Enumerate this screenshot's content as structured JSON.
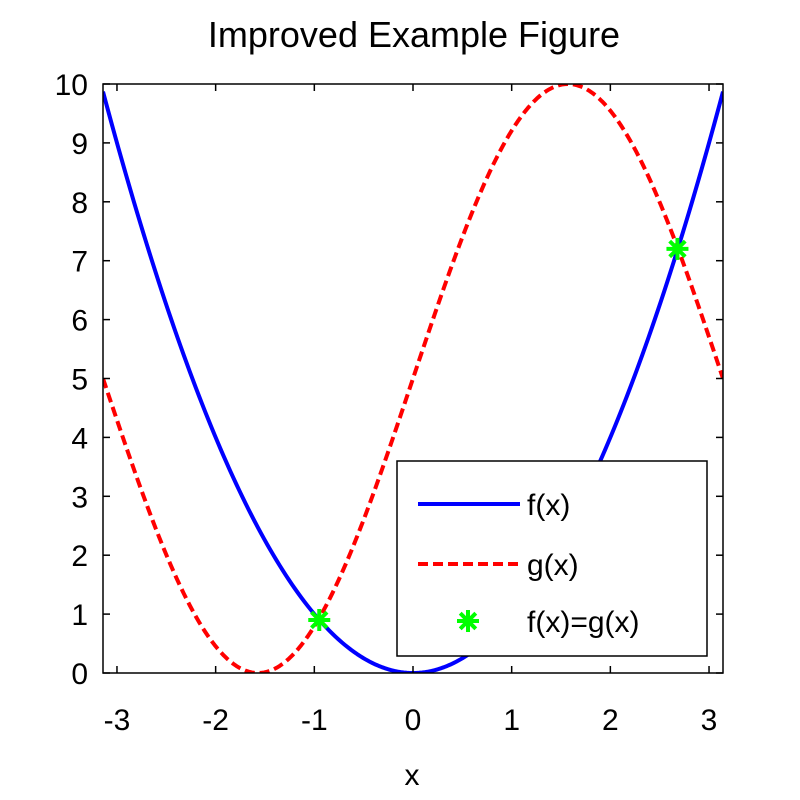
{
  "chart_data": {
    "type": "line",
    "title": "Improved Example Figure",
    "xlabel": "x",
    "ylabel": "",
    "xlim": [
      -3.14159,
      3.14159
    ],
    "ylim": [
      0,
      10
    ],
    "xticks": [
      -3,
      -2,
      -1,
      0,
      1,
      2,
      3
    ],
    "xtick_labels": [
      "-3",
      "-2",
      "-1",
      "0",
      "1",
      "2",
      "3"
    ],
    "yticks": [
      0,
      1,
      2,
      3,
      4,
      5,
      6,
      7,
      8,
      9,
      10
    ],
    "ytick_labels": [
      "0",
      "1",
      "2",
      "3",
      "4",
      "5",
      "6",
      "7",
      "8",
      "9",
      "10"
    ],
    "grid": false,
    "legend_position": "bottom-right",
    "series": [
      {
        "name": "f(x)",
        "style": "solid",
        "color": "#0000ff",
        "x": [
          -3.14,
          -2.8,
          -2.4,
          -2.0,
          -1.6,
          -1.2,
          -0.8,
          -0.4,
          0,
          0.4,
          0.8,
          1.2,
          1.6,
          2.0,
          2.4,
          2.8,
          3.14
        ],
        "y": [
          9.86,
          7.84,
          5.76,
          4.0,
          2.56,
          1.44,
          0.64,
          0.16,
          0,
          0.16,
          0.64,
          1.44,
          2.56,
          4.0,
          5.76,
          7.84,
          9.86
        ]
      },
      {
        "name": "g(x)",
        "style": "dashed",
        "color": "#ff0000",
        "x": [
          -3.14,
          -2.8,
          -2.4,
          -2.0,
          -1.57,
          -1.2,
          -0.8,
          -0.4,
          0,
          0.4,
          0.8,
          1.2,
          1.57,
          2.0,
          2.4,
          2.8,
          3.14
        ],
        "y": [
          5.0,
          3.34,
          1.62,
          0.45,
          0.0,
          0.34,
          1.41,
          3.05,
          5.0,
          6.95,
          8.59,
          9.66,
          10.0,
          9.55,
          8.38,
          6.67,
          5.0
        ]
      },
      {
        "name": "f(x)=g(x)",
        "style": "marker",
        "marker": "asterisk",
        "color": "#00ff00",
        "x": [
          -0.95,
          2.68
        ],
        "y": [
          0.9,
          7.2
        ]
      }
    ]
  }
}
